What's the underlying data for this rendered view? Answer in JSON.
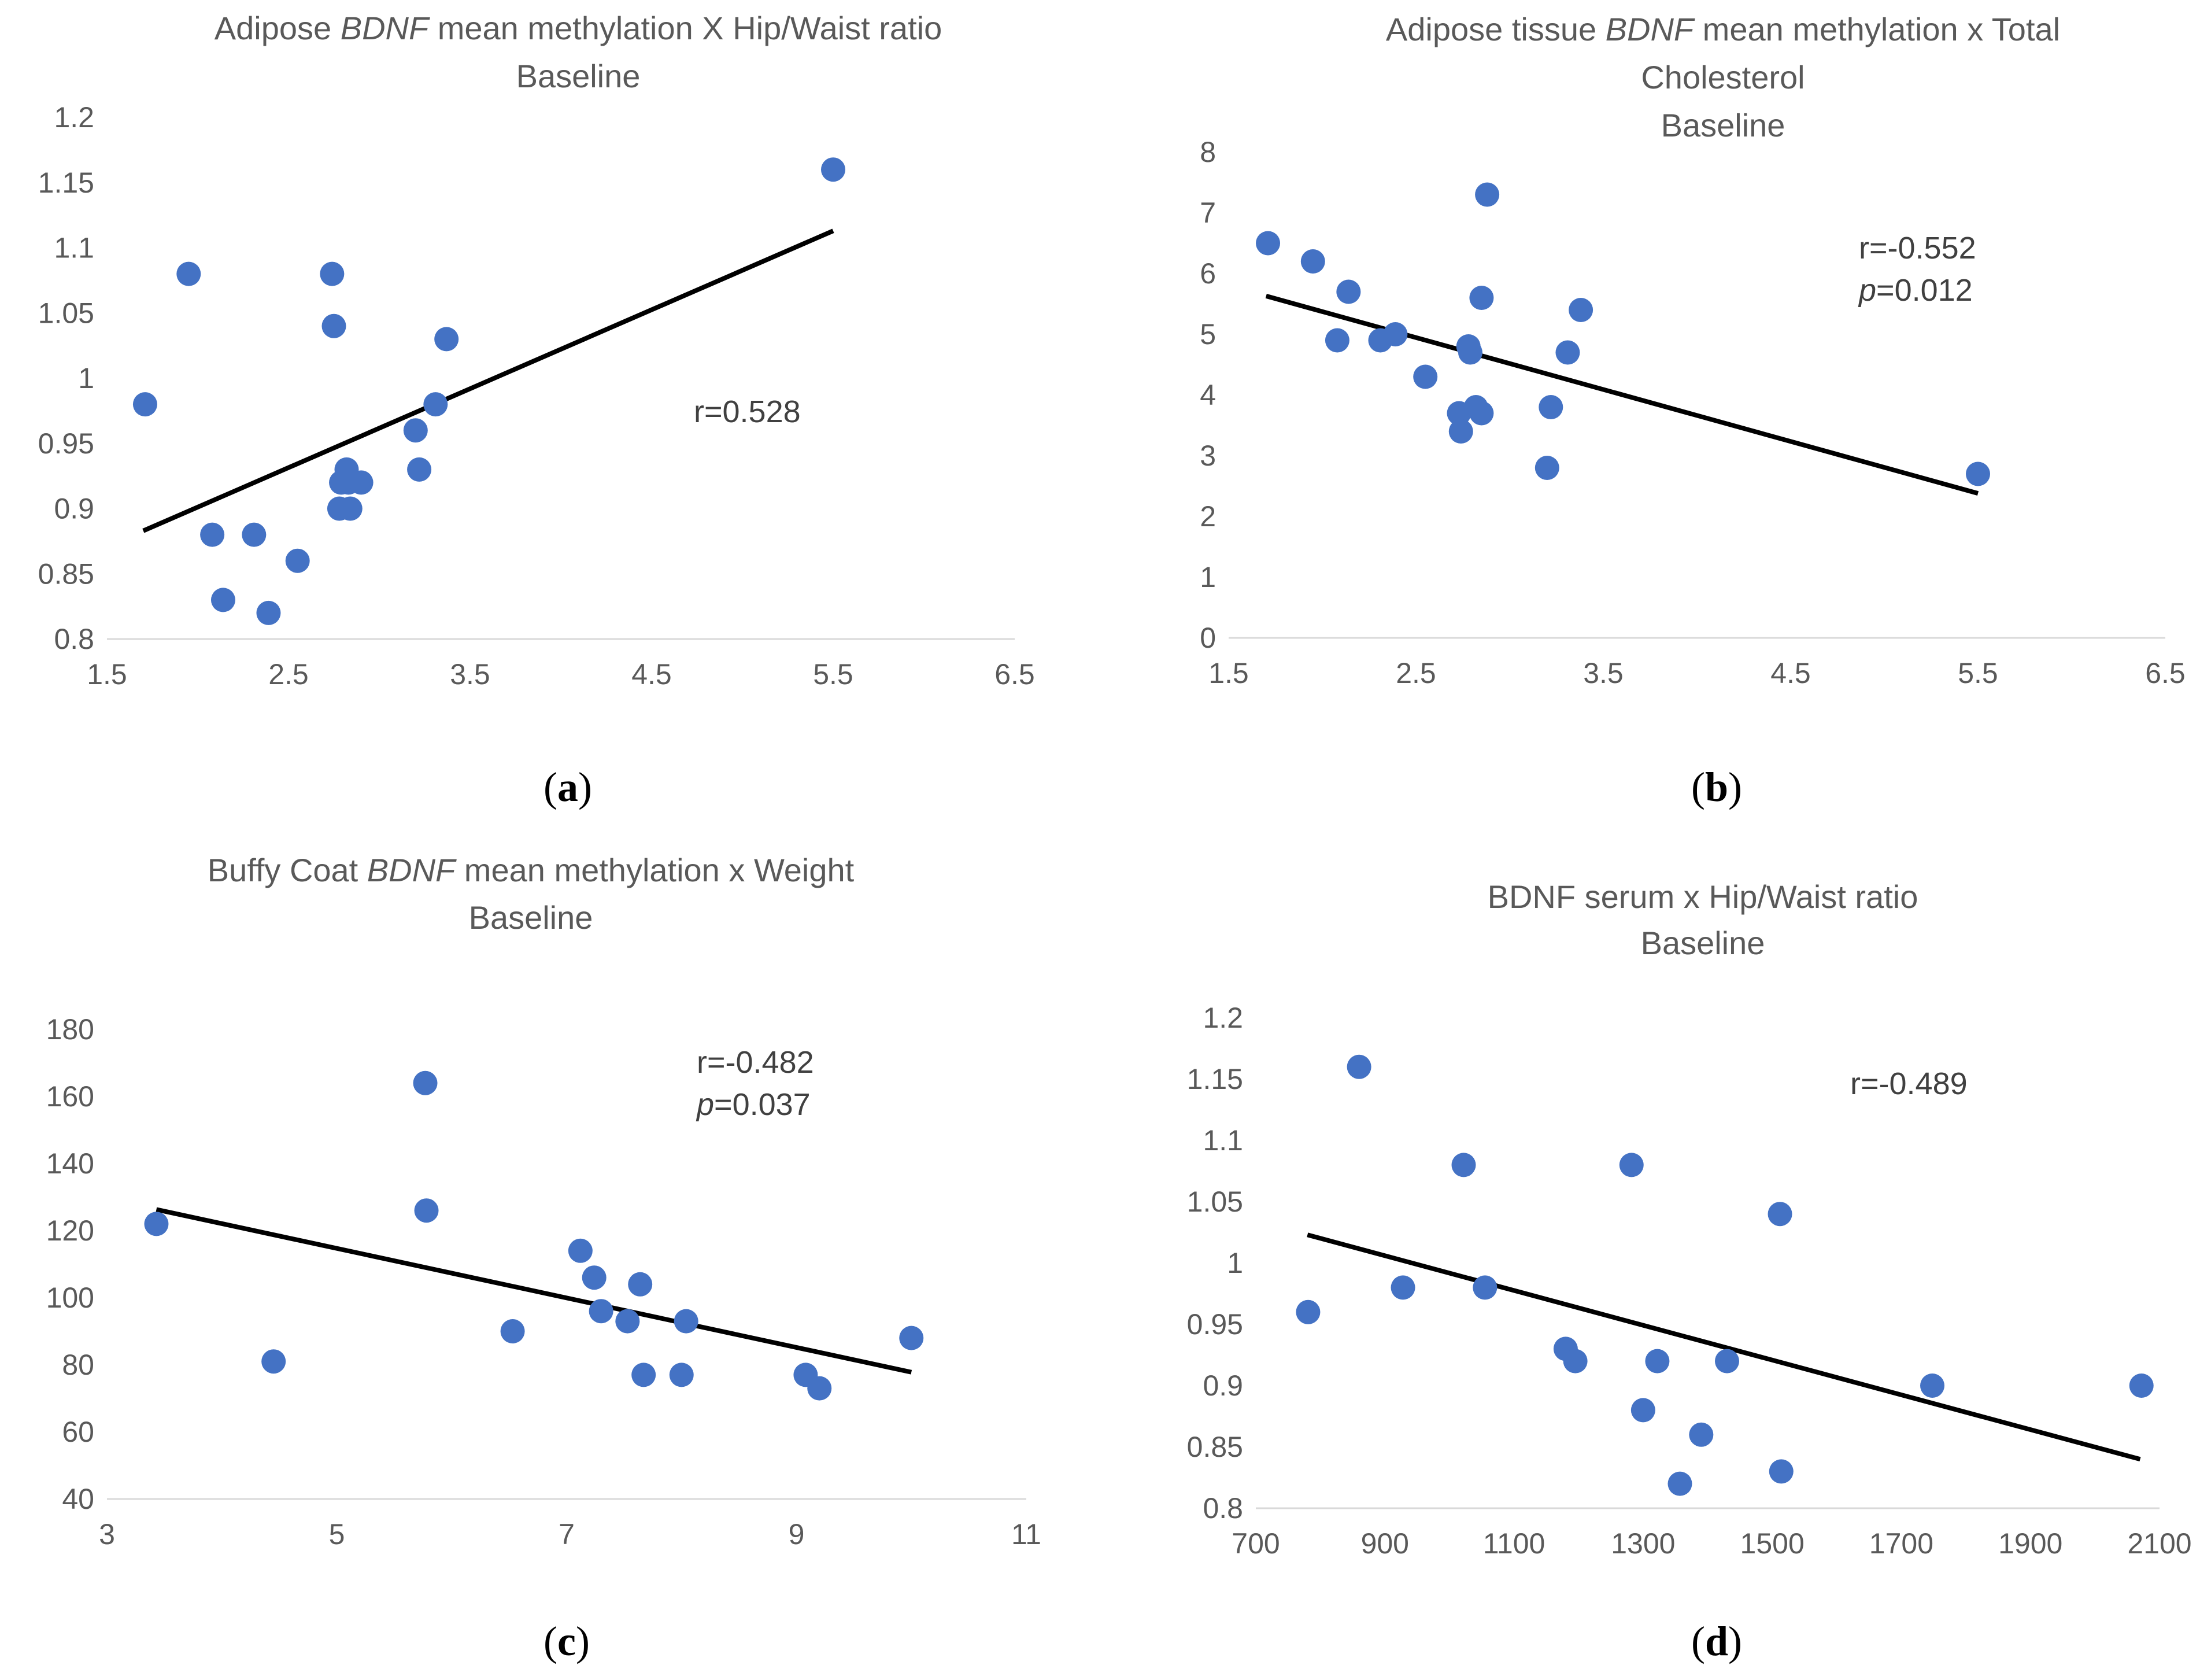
{
  "colors": {
    "point": "#4472c4",
    "trend": "#000000",
    "axis": "#d9d9d9",
    "text": "#595959"
  },
  "chart_data": [
    {
      "panel": "(a)",
      "type": "scatter",
      "title_parts": [
        "Adipose ",
        "BDNF",
        " mean methylation X Hip/Waist ratio"
      ],
      "subtitle": "Baseline",
      "annotation": "r=0.528",
      "xlim": [
        1.5,
        6.5
      ],
      "xticks": [
        1.5,
        2.5,
        3.5,
        4.5,
        5.5,
        6.5
      ],
      "xtick_labels": [
        "1.5",
        "2.5",
        "3.5",
        "4.5",
        "5.5",
        "6.5"
      ],
      "ylim": [
        0.8,
        1.2
      ],
      "yticks": [
        0.8,
        0.85,
        0.9,
        0.95,
        1.0,
        1.05,
        1.1,
        1.15,
        1.2
      ],
      "ytick_labels": [
        "0.8",
        "0.85",
        "0.9",
        "0.95",
        "1",
        "1.05",
        "1.1",
        "1.15",
        "1.2"
      ],
      "x": [
        1.71,
        1.95,
        2.08,
        2.14,
        2.31,
        2.39,
        2.55,
        2.74,
        2.75,
        2.78,
        2.79,
        2.82,
        2.83,
        2.84,
        2.9,
        3.2,
        3.22,
        3.31,
        3.37,
        5.5
      ],
      "y": [
        0.98,
        1.08,
        0.88,
        0.83,
        0.88,
        0.82,
        0.86,
        1.08,
        1.04,
        0.9,
        0.92,
        0.93,
        0.92,
        0.9,
        0.92,
        0.96,
        0.93,
        0.98,
        1.03,
        1.16
      ],
      "trendline": {
        "x": [
          1.7,
          5.5
        ],
        "y": [
          0.883,
          1.113
        ]
      }
    },
    {
      "panel": "(b)",
      "type": "scatter",
      "title_parts": [
        "Adipose tissue ",
        "BDNF",
        " mean methylation x Total"
      ],
      "title_line2": "Cholesterol",
      "subtitle": "Baseline",
      "annotation": "r=-0.552",
      "annotation2": "=0.012",
      "annotation2_prefix": "p",
      "xlim": [
        1.5,
        6.5
      ],
      "xticks": [
        1.5,
        2.5,
        3.5,
        4.5,
        5.5,
        6.5
      ],
      "xtick_labels": [
        "1.5",
        "2.5",
        "3.5",
        "4.5",
        "5.5",
        "6.5"
      ],
      "ylim": [
        0,
        8
      ],
      "yticks": [
        0,
        1,
        2,
        3,
        4,
        5,
        6,
        7,
        8
      ],
      "ytick_labels": [
        "0",
        "1",
        "2",
        "3",
        "4",
        "5",
        "6",
        "7",
        "8"
      ],
      "x": [
        1.71,
        1.95,
        2.08,
        2.14,
        2.31,
        2.39,
        2.55,
        2.73,
        2.74,
        2.78,
        2.79,
        2.82,
        2.85,
        2.85,
        2.88,
        3.2,
        3.22,
        3.31,
        3.38,
        5.5
      ],
      "y": [
        6.5,
        6.2,
        4.9,
        5.7,
        4.9,
        5.0,
        4.3,
        3.7,
        3.4,
        4.8,
        4.7,
        3.8,
        5.6,
        3.7,
        7.3,
        2.8,
        3.8,
        4.7,
        5.4,
        2.7
      ],
      "trendline": {
        "x": [
          1.7,
          5.5
        ],
        "y": [
          5.63,
          2.38
        ]
      }
    },
    {
      "panel": "(c)",
      "type": "scatter",
      "title_parts": [
        "Buffy Coat ",
        "BDNF",
        " mean methylation x Weight"
      ],
      "subtitle": "Baseline",
      "annotation": "r=-0.482",
      "annotation2": "=0.037",
      "annotation2_prefix": "p",
      "xlim": [
        3,
        11
      ],
      "xticks": [
        3,
        5,
        7,
        9,
        11
      ],
      "xtick_labels": [
        "3",
        "5",
        "7",
        "9",
        "11"
      ],
      "ylim": [
        40,
        180
      ],
      "yticks": [
        40,
        60,
        80,
        100,
        120,
        140,
        160,
        180
      ],
      "ytick_labels": [
        "40",
        "60",
        "80",
        "100",
        "120",
        "140",
        "160",
        "180"
      ],
      "x": [
        3.43,
        4.45,
        5.77,
        5.78,
        6.53,
        7.12,
        7.24,
        7.3,
        7.53,
        7.64,
        7.67,
        8.0,
        8.04,
        9.08,
        9.2,
        10.0
      ],
      "y": [
        122,
        81,
        164,
        126,
        90,
        114,
        106,
        96,
        93,
        104,
        77,
        77,
        93,
        77,
        73,
        88
      ],
      "trendline": {
        "x": [
          3.43,
          10.0
        ],
        "y": [
          126.3,
          77.8
        ]
      }
    },
    {
      "panel": "(d)",
      "type": "scatter",
      "title_parts": [
        "BDNF serum x Hip/Waist ratio"
      ],
      "subtitle": "Baseline",
      "annotation": "r=-0.489",
      "xlim": [
        700,
        2100
      ],
      "xticks": [
        700,
        900,
        1100,
        1300,
        1500,
        1700,
        1900,
        2100
      ],
      "xtick_labels": [
        "700",
        "900",
        "1100",
        "1300",
        "1500",
        "1700",
        "1900",
        "2100"
      ],
      "ylim": [
        0.8,
        1.2
      ],
      "yticks": [
        0.8,
        0.85,
        0.9,
        0.95,
        1.0,
        1.05,
        1.1,
        1.15,
        1.2
      ],
      "ytick_labels": [
        "0.8",
        "0.85",
        "0.9",
        "0.95",
        "1",
        "1.05",
        "1.1",
        "1.15",
        "1.2"
      ],
      "x": [
        781,
        860,
        928,
        1022,
        1055,
        1180,
        1195,
        1282,
        1300,
        1322,
        1357,
        1390,
        1430,
        1512,
        1514,
        1748,
        2072
      ],
      "y": [
        0.96,
        1.16,
        0.98,
        1.08,
        0.98,
        0.93,
        0.92,
        1.08,
        0.88,
        0.92,
        0.82,
        0.86,
        0.92,
        1.04,
        0.83,
        0.9,
        0.9
      ],
      "trendline": {
        "x": [
          780,
          2070
        ],
        "y": [
          1.023,
          0.84
        ]
      }
    }
  ]
}
